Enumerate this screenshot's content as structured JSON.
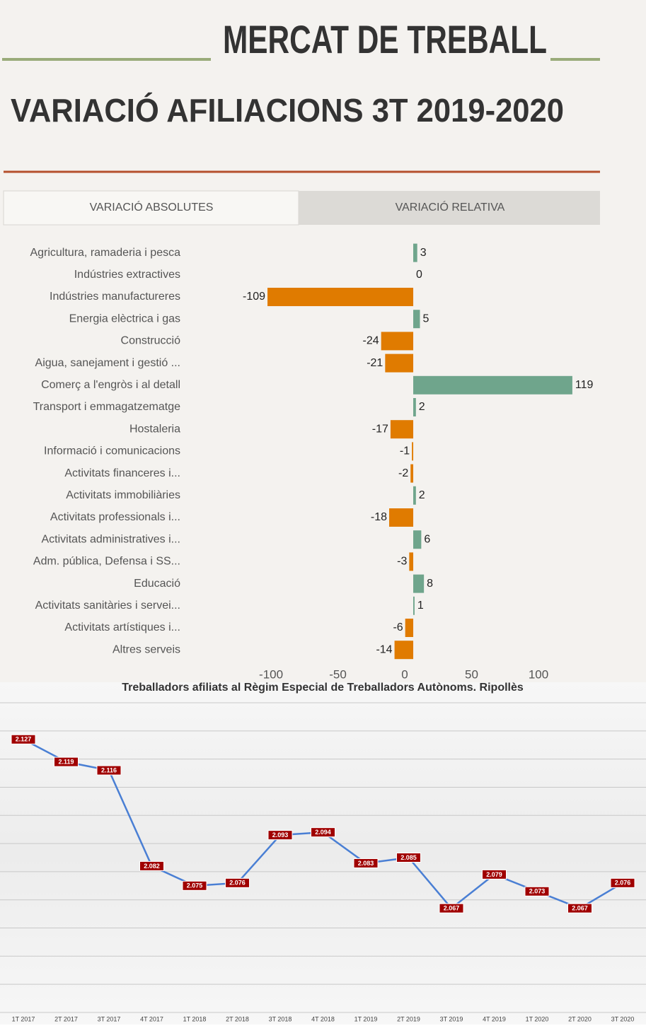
{
  "header": {
    "title": "MERCAT DE TREBALL",
    "subtitle": "VARIACIÓ AFILIACIONS 3T 2019-2020"
  },
  "tabs": [
    "VARIACIÓ ABSOLUTES",
    "VARIACIÓ RELATIVA"
  ],
  "chart_data": [
    {
      "type": "hbar",
      "categories": [
        "Agricultura, ramaderia i pesca",
        "Indústries extractives",
        "Indústries manufactureres",
        "Energia elèctrica i gas",
        "Construcció",
        "Aigua, sanejament i gestió ...",
        "Comerç a l'engròs i al detall",
        "Transport i emmagatzematge",
        "Hostaleria",
        "Informació i comunicacions",
        "Activitats financeres i...",
        "Activitats immobiliàries",
        "Activitats professionals i...",
        "Activitats administratives i...",
        "Adm. pública, Defensa i SS...",
        "Educació",
        "Activitats sanitàries i servei...",
        "Activitats artístiques i...",
        "Altres serveis"
      ],
      "values": [
        3,
        0,
        -109,
        5,
        -24,
        -21,
        119,
        2,
        -17,
        -1,
        -2,
        2,
        -18,
        6,
        -3,
        8,
        1,
        -6,
        -14
      ],
      "positive_color": "#6fa58c",
      "negative_color": "#e07b00",
      "xlim": [
        -115,
        140
      ],
      "xticks": [
        -100,
        -50,
        0,
        50,
        100
      ]
    },
    {
      "type": "line",
      "title": "Treballadors afiliats al Règim Especial de Treballadors Autònoms. Ripollès",
      "categories": [
        "1T 2017",
        "2T 2017",
        "3T 2017",
        "4T 2017",
        "1T 2018",
        "2T 2018",
        "3T 2018",
        "4T 2018",
        "1T 2019",
        "2T 2019",
        "3T 2019",
        "4T 2019",
        "1T 2020",
        "2T 2020",
        "3T 2020"
      ],
      "values": [
        2127,
        2119,
        2116,
        2082,
        2075,
        2076,
        2093,
        2094,
        2083,
        2085,
        2067,
        2079,
        2073,
        2067,
        2076
      ],
      "value_labels": [
        "2.127",
        "2.119",
        "2.116",
        "2.082",
        "2.075",
        "2.076",
        "2.093",
        "2.094",
        "2.083",
        "2.085",
        "2.067",
        "2.079",
        "2.073",
        "2.067",
        "2.076"
      ],
      "color": "#4a7fd4",
      "ylim": [
        2030,
        2140
      ],
      "yticks": [
        2030,
        2040,
        2050,
        2060,
        2070,
        2080,
        2090,
        2100,
        2110,
        2120,
        2130,
        2140
      ],
      "grid": true
    }
  ]
}
